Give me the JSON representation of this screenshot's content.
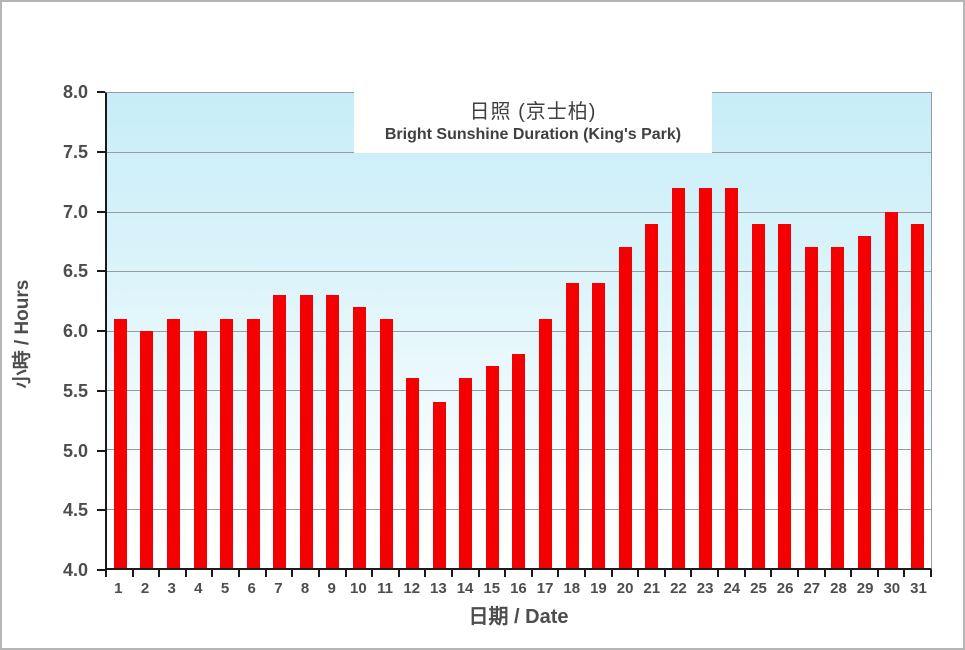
{
  "chart_data": {
    "type": "bar",
    "title_zh": "日照 (京士柏)",
    "title_en": "Bright Sunshine Duration (King's Park)",
    "xlabel": "日期 / Date",
    "ylabel": "小時 / Hours",
    "categories": [
      "1",
      "2",
      "3",
      "4",
      "5",
      "6",
      "7",
      "8",
      "9",
      "10",
      "11",
      "12",
      "13",
      "14",
      "15",
      "16",
      "17",
      "18",
      "19",
      "20",
      "21",
      "22",
      "23",
      "24",
      "25",
      "26",
      "27",
      "28",
      "29",
      "30",
      "31"
    ],
    "values": [
      6.1,
      6.0,
      6.1,
      6.0,
      6.1,
      6.1,
      6.3,
      6.3,
      6.3,
      6.2,
      6.1,
      5.6,
      5.4,
      5.6,
      5.7,
      5.8,
      6.1,
      6.4,
      6.4,
      6.7,
      6.9,
      7.2,
      7.2,
      7.2,
      6.9,
      6.9,
      6.7,
      6.7,
      6.8,
      7.0,
      6.9
    ],
    "ylim": [
      4.0,
      8.0
    ],
    "ytick_step": 0.5,
    "yticks": [
      "8.0",
      "7.5",
      "7.0",
      "6.5",
      "6.0",
      "5.5",
      "5.0",
      "4.5",
      "4.0"
    ],
    "grid": true,
    "legend": "none",
    "bar_color": "#f40000",
    "plot_bg_top": "#c7edf8",
    "plot_bg_bottom": "#ffffff",
    "gridline_color": "#9a9a9a",
    "axis_text_color": "#4d4d4d"
  }
}
